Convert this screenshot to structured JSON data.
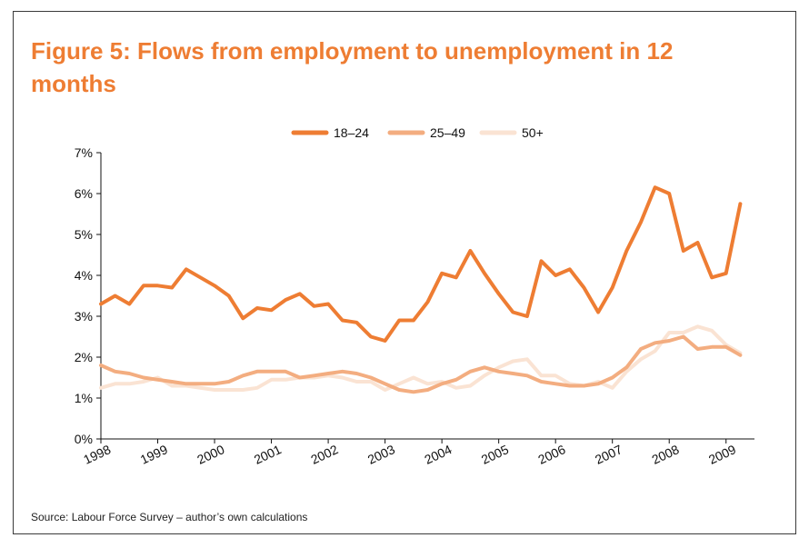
{
  "figure": {
    "title": "Figure 5: Flows from employment to unemployment in 12 months",
    "source": "Source: Labour Force Survey – author’s own calculations"
  },
  "chart_data": {
    "type": "line",
    "title": "Figure 5: Flows from employment to unemployment in 12 months",
    "xlabel": "",
    "ylabel": "",
    "x_ticks": [
      "1998",
      "1999",
      "2000",
      "2001",
      "2002",
      "2003",
      "2004",
      "2005",
      "2006",
      "2007",
      "2008",
      "2009"
    ],
    "xlim": [
      1998,
      2009.5
    ],
    "y_ticks": [
      "0%",
      "1%",
      "2%",
      "3%",
      "4%",
      "5%",
      "6%",
      "7%"
    ],
    "ylim": [
      0,
      7
    ],
    "legend_position": "top",
    "grid": false,
    "x": [
      1998.0,
      1998.25,
      1998.5,
      1998.75,
      1999.0,
      1999.25,
      1999.5,
      1999.75,
      2000.0,
      2000.25,
      2000.5,
      2000.75,
      2001.0,
      2001.25,
      2001.5,
      2001.75,
      2002.0,
      2002.25,
      2002.5,
      2002.75,
      2003.0,
      2003.25,
      2003.5,
      2003.75,
      2004.0,
      2004.25,
      2004.5,
      2004.75,
      2005.0,
      2005.25,
      2005.5,
      2005.75,
      2006.0,
      2006.25,
      2006.5,
      2006.75,
      2007.0,
      2007.25,
      2007.5,
      2007.75,
      2008.0,
      2008.25,
      2008.5,
      2008.75,
      2009.0,
      2009.25
    ],
    "series": [
      {
        "name": "18–24",
        "color": "#ee7d33",
        "values": [
          3.3,
          3.5,
          3.3,
          3.75,
          3.75,
          3.7,
          4.15,
          3.95,
          3.75,
          3.5,
          2.95,
          3.2,
          3.15,
          3.4,
          3.55,
          3.25,
          3.3,
          2.9,
          2.85,
          2.5,
          2.4,
          2.9,
          2.9,
          3.35,
          4.05,
          3.95,
          4.6,
          4.05,
          3.55,
          3.1,
          3.0,
          4.35,
          4.0,
          4.15,
          3.7,
          3.1,
          3.7,
          4.6,
          5.3,
          6.15,
          6.0,
          4.6,
          4.8,
          3.95,
          4.05,
          5.75
        ]
      },
      {
        "name": "25–49",
        "color": "#f3ad80",
        "values": [
          1.8,
          1.65,
          1.6,
          1.5,
          1.45,
          1.4,
          1.35,
          1.35,
          1.35,
          1.4,
          1.55,
          1.65,
          1.65,
          1.65,
          1.5,
          1.55,
          1.6,
          1.65,
          1.6,
          1.5,
          1.35,
          1.2,
          1.15,
          1.2,
          1.35,
          1.45,
          1.65,
          1.75,
          1.65,
          1.6,
          1.55,
          1.4,
          1.35,
          1.3,
          1.3,
          1.35,
          1.5,
          1.75,
          2.2,
          2.35,
          2.4,
          2.5,
          2.2,
          2.25,
          2.25,
          2.05
        ]
      },
      {
        "name": "50+",
        "color": "#fae3d3",
        "values": [
          1.25,
          1.35,
          1.35,
          1.4,
          1.5,
          1.3,
          1.3,
          1.25,
          1.2,
          1.2,
          1.2,
          1.25,
          1.45,
          1.45,
          1.5,
          1.5,
          1.55,
          1.5,
          1.4,
          1.4,
          1.2,
          1.35,
          1.5,
          1.35,
          1.4,
          1.25,
          1.3,
          1.55,
          1.75,
          1.9,
          1.95,
          1.55,
          1.55,
          1.35,
          1.3,
          1.4,
          1.25,
          1.65,
          1.95,
          2.15,
          2.6,
          2.6,
          2.75,
          2.65,
          2.3,
          2.1
        ]
      }
    ]
  }
}
